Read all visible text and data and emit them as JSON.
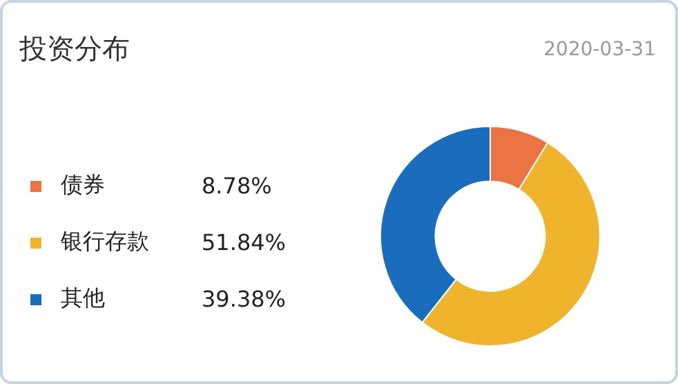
{
  "chart_data": {
    "type": "donut",
    "title": "投资分布",
    "subtitle": "2020-03-31",
    "categories": [
      "债券",
      "银行存款",
      "其他"
    ],
    "values": [
      8.78,
      51.84,
      39.38
    ],
    "value_labels": [
      "8.78%",
      "51.84%",
      "39.38%"
    ],
    "colors": [
      "#ec7344",
      "#f0b42c",
      "#1a6cbc"
    ],
    "legend": "left"
  }
}
